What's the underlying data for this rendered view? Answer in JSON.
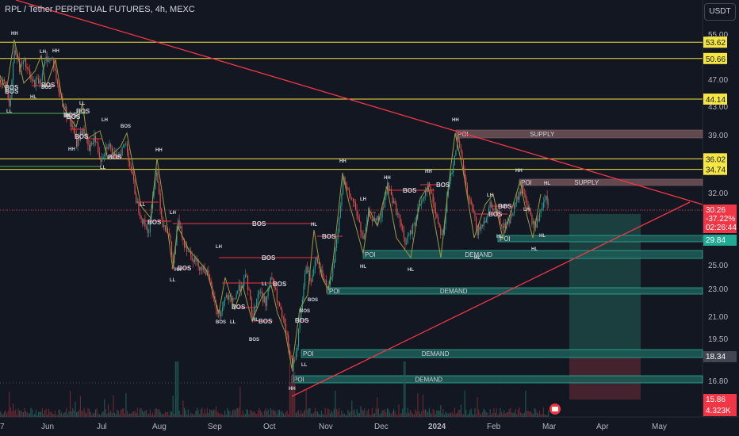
{
  "header": {
    "title": "RPL / Tether PERPETUAL FUTURES, 4h, MEXC",
    "currency": "USDT"
  },
  "chart_data": {
    "type": "candlestick",
    "y_axis_ticks": [
      "55.00",
      "47.00",
      "43.00",
      "39.00",
      "32.00",
      "25.00",
      "23.00",
      "21.00",
      "19.50",
      "16.80"
    ],
    "x_axis_ticks": [
      {
        "label": "7",
        "bold": false
      },
      {
        "label": "Jun",
        "bold": false
      },
      {
        "label": "Jul",
        "bold": false
      },
      {
        "label": "Aug",
        "bold": false
      },
      {
        "label": "Sep",
        "bold": false
      },
      {
        "label": "Oct",
        "bold": false
      },
      {
        "label": "Nov",
        "bold": false
      },
      {
        "label": "Dec",
        "bold": false
      },
      {
        "label": "2024",
        "bold": true
      },
      {
        "label": "Feb",
        "bold": false
      },
      {
        "label": "Mar",
        "bold": false
      },
      {
        "label": "Apr",
        "bold": false
      },
      {
        "label": "May",
        "bold": false
      }
    ],
    "horizontal_levels": [
      {
        "value": 53.62,
        "label": "53.62",
        "color": "#f5e642"
      },
      {
        "value": 50.66,
        "label": "50.66",
        "color": "#f5e642"
      },
      {
        "value": 44.14,
        "label": "44.14",
        "color": "#f5e642"
      },
      {
        "value": 36.02,
        "label": "36.02",
        "color": "#f5e642"
      },
      {
        "value": 34.74,
        "label": "34.74",
        "color": "#f5e642"
      }
    ],
    "price_labels": [
      {
        "value": 30.26,
        "lines": [
          "30.26",
          "-37.22%",
          "02:26:44"
        ],
        "color": "#f23645"
      },
      {
        "value": 29.84,
        "lines": [
          "29.84"
        ],
        "color": "#22ab94"
      },
      {
        "value": 18.34,
        "lines": [
          "18.34"
        ],
        "color": "#434651"
      },
      {
        "value": 15.86,
        "lines": [
          "15.86"
        ],
        "color": "#f23645"
      },
      {
        "value": 15.1,
        "lines": [
          "4.323K"
        ],
        "color": "#f23645"
      }
    ],
    "zones": [
      {
        "kind": "supply",
        "label": "SUPPLY",
        "poi": "POI",
        "x0": 575,
        "x1": 886,
        "y_top": 164,
        "y_bot": 174
      },
      {
        "kind": "supply",
        "label": "SUPPLY",
        "poi": "POI",
        "x0": 655,
        "x1": 886,
        "y_top": 226,
        "y_bot": 234
      },
      {
        "kind": "demand",
        "label": "DEMAND",
        "poi": "POI",
        "x0": 458,
        "x1": 886,
        "y_top": 316,
        "y_bot": 326
      },
      {
        "kind": "demand",
        "label": "",
        "poi": "POI",
        "x0": 628,
        "x1": 886,
        "y_top": 297,
        "y_bot": 305
      },
      {
        "kind": "demand",
        "label": "DEMAND",
        "poi": "POI",
        "x0": 413,
        "x1": 886,
        "y_top": 363,
        "y_bot": 371
      },
      {
        "kind": "demand",
        "label": "DEMAND",
        "poi": "POI",
        "x0": 380,
        "x1": 886,
        "y_top": 441,
        "y_bot": 451
      },
      {
        "kind": "demand",
        "label": "DEMAND",
        "poi": "POI",
        "x0": 368,
        "x1": 886,
        "y_top": 474,
        "y_bot": 483
      }
    ],
    "structure_labels": [
      "HH",
      "LH",
      "HH",
      "LL",
      "BOS",
      "HL",
      "LL",
      "HH",
      "LH",
      "LL",
      "BOS",
      "HL",
      "HH",
      "LL",
      "LH",
      "LL",
      "HH",
      "LH",
      "BOS",
      "LL",
      "BOS",
      "HL",
      "LL",
      "HH",
      "BOS",
      "LL",
      "BOS",
      "HL",
      "HH",
      "LH",
      "HH",
      "HH",
      "HL",
      "HL",
      "HH",
      "LH",
      "HH",
      "HL",
      "HL",
      "HL",
      "LH",
      "HL",
      "LH",
      "HL"
    ],
    "bos_labels": [
      "BOS",
      "BOS",
      "BOS",
      "BOS",
      "BOS",
      "BOS",
      "BOS",
      "BOS",
      "BOS",
      "BOS",
      "BOS",
      "BOS",
      "BOS",
      "BOS",
      "BOS",
      "BOS",
      "BOS",
      "BOS",
      "BOS",
      "BOS",
      "BOS"
    ],
    "position_tool": {
      "entry": 30.26,
      "target_color": "#1f4e4a",
      "stop_color": "#4e2530"
    }
  }
}
